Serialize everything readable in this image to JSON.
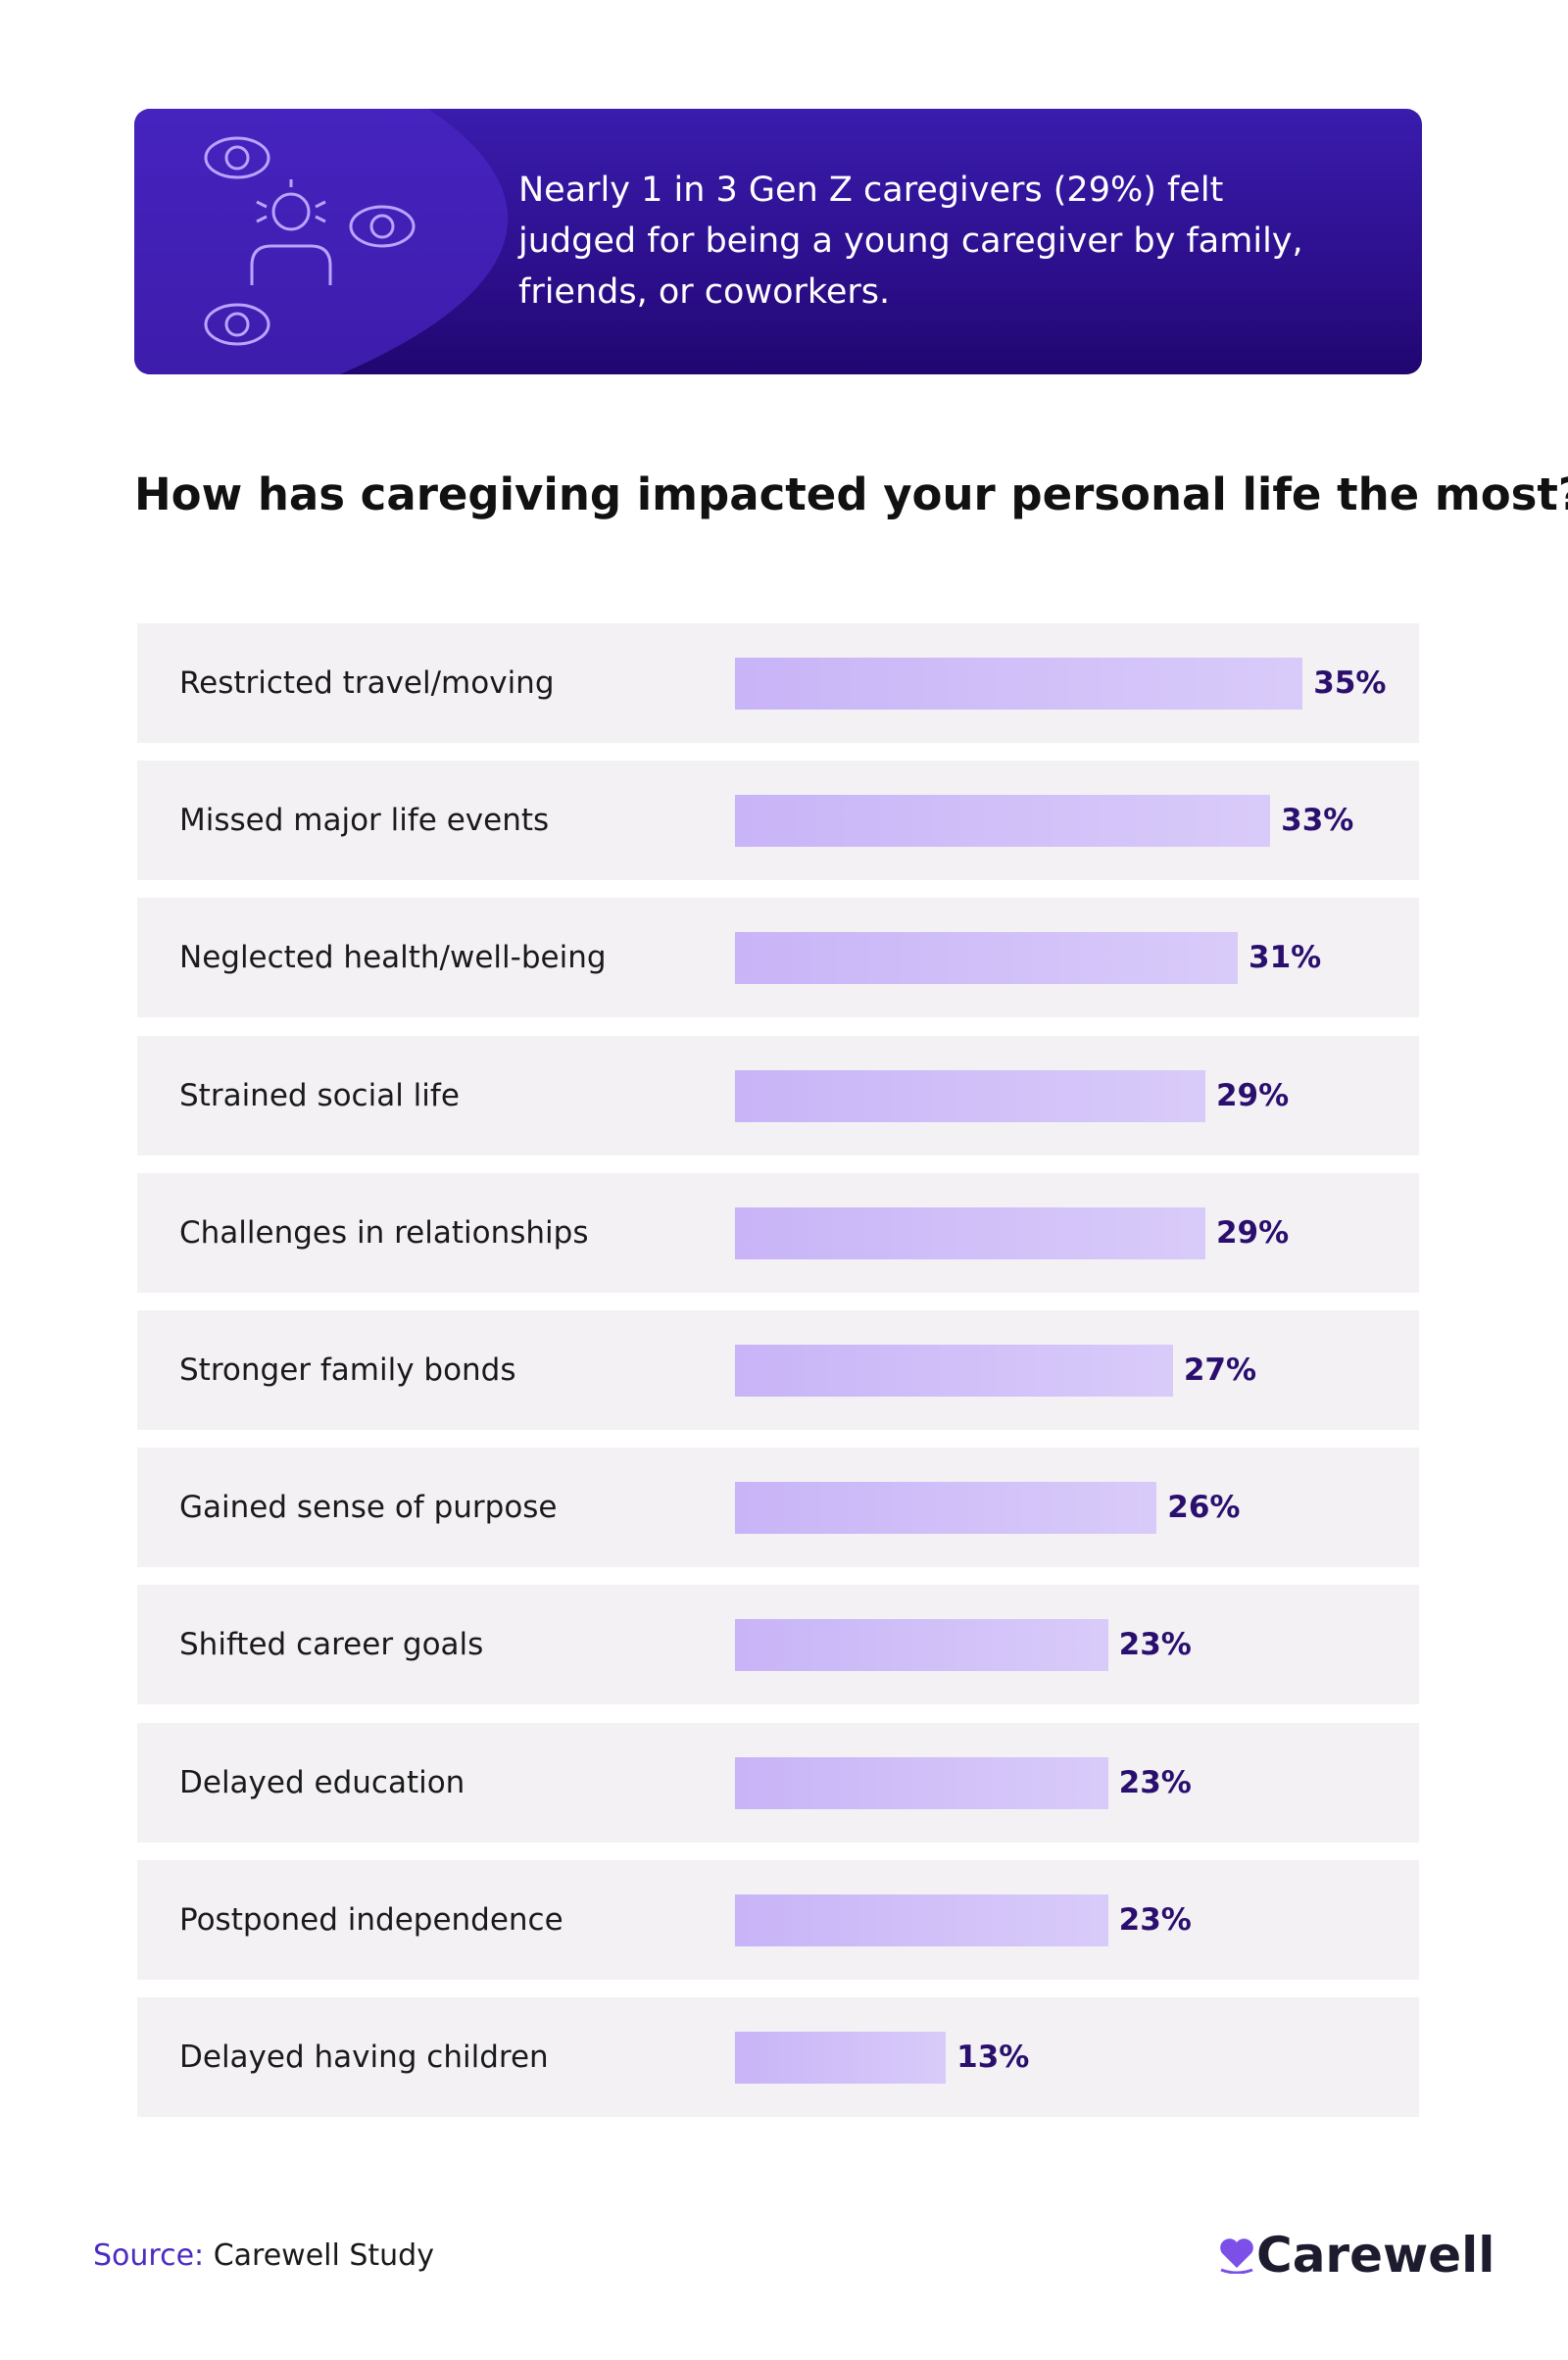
{
  "banner": {
    "text": "Nearly 1 in 3 Gen Z caregivers (29%) felt judged for being a young caregiver by family, friends, or coworkers."
  },
  "chart_data": {
    "type": "bar",
    "orientation": "horizontal",
    "title": "How has caregiving impacted your personal life the most?",
    "categories": [
      "Restricted travel/moving",
      "Missed major life events",
      "Neglected health/well-being",
      "Strained social life",
      "Challenges in relationships",
      "Stronger family bonds",
      "Gained sense of purpose",
      "Shifted career goals",
      "Delayed education",
      "Postponed independence",
      "Delayed having children"
    ],
    "values": [
      35,
      33,
      31,
      29,
      29,
      27,
      26,
      23,
      23,
      23,
      13
    ],
    "value_labels": [
      "35%",
      "33%",
      "31%",
      "29%",
      "29%",
      "27%",
      "26%",
      "23%",
      "23%",
      "23%",
      "13%"
    ],
    "color": "#c8b4f7",
    "label_color": "#2a0f6e"
  },
  "footer": {
    "source_label": "Source:",
    "source": "Carewell Study",
    "logo": "Carewell"
  }
}
